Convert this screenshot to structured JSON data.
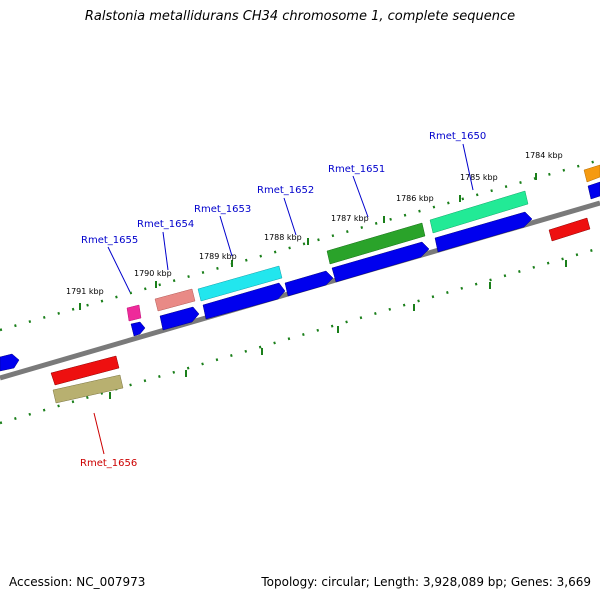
{
  "title": "Ralstonia metallidurans CH34 chromosome 1, complete sequence",
  "footer": {
    "accession": "Accession: NC_007973",
    "summary": "Topology: circular; Length: 3,928,089 bp; Genes: 3,669"
  },
  "colors": {
    "backbone": "#7a7a7a",
    "tick": "#1a7f1a",
    "label_blue": "#0000cc",
    "label_red": "#cc0000",
    "strand_minus": "#0000ee"
  },
  "scale_labels": [
    "1791 kbp",
    "1790 kbp",
    "1789 kbp",
    "1788 kbp",
    "1787 kbp",
    "1786 kbp",
    "1785 kbp",
    "1784 kbp"
  ],
  "genes": [
    {
      "id": "Rmet_1655",
      "color": "#ee2a9a",
      "label_color": "#0000cc"
    },
    {
      "id": "Rmet_1654",
      "color": "#e98a86",
      "label_color": "#0000cc"
    },
    {
      "id": "Rmet_1653",
      "color": "#22e6ee",
      "label_color": "#0000cc"
    },
    {
      "id": "Rmet_1652",
      "color": "#0000ee",
      "label_color": "#0000cc"
    },
    {
      "id": "Rmet_1651",
      "color": "#2aa32a",
      "label_color": "#0000cc"
    },
    {
      "id": "Rmet_1650",
      "color": "#22ea96",
      "label_color": "#0000cc"
    },
    {
      "id": "Rmet_1656",
      "color": "#b8b070",
      "label_color": "#cc0000"
    }
  ]
}
